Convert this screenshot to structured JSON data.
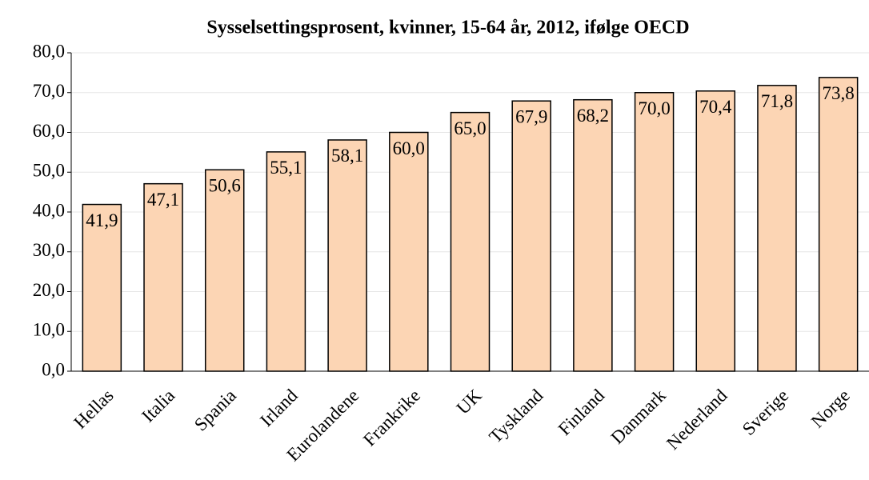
{
  "chart_data": {
    "type": "bar",
    "title": "Sysselsettingsprosent, kvinner, 15-64 år, 2012, ifølge OECD",
    "categories": [
      "Hellas",
      "Italia",
      "Spania",
      "Irland",
      "Eurolandene",
      "Frankrike",
      "UK",
      "Tyskland",
      "Finland",
      "Danmark",
      "Nederland",
      "Sverige",
      "Norge"
    ],
    "values": [
      41.9,
      47.1,
      50.6,
      55.1,
      58.1,
      60.0,
      65.0,
      67.9,
      68.2,
      70.0,
      70.4,
      71.8,
      73.8
    ],
    "value_labels": [
      "41,9",
      "47,1",
      "50,6",
      "55,1",
      "58,1",
      "60,0",
      "65,0",
      "67,9",
      "68,2",
      "70,0",
      "70,4",
      "71,8",
      "73,8"
    ],
    "color": "#fcd5b4",
    "ylim": [
      0,
      80
    ],
    "yticks": [
      {
        "value": 0,
        "label": "0,0"
      },
      {
        "value": 10,
        "label": "10,0"
      },
      {
        "value": 20,
        "label": "20,0"
      },
      {
        "value": 30,
        "label": "30,0"
      },
      {
        "value": 40,
        "label": "40,0"
      },
      {
        "value": 50,
        "label": "50,0"
      },
      {
        "value": 60,
        "label": "60,0"
      },
      {
        "value": 70,
        "label": "70,0"
      },
      {
        "value": 80,
        "label": "80,0"
      }
    ],
    "grid": true
  }
}
